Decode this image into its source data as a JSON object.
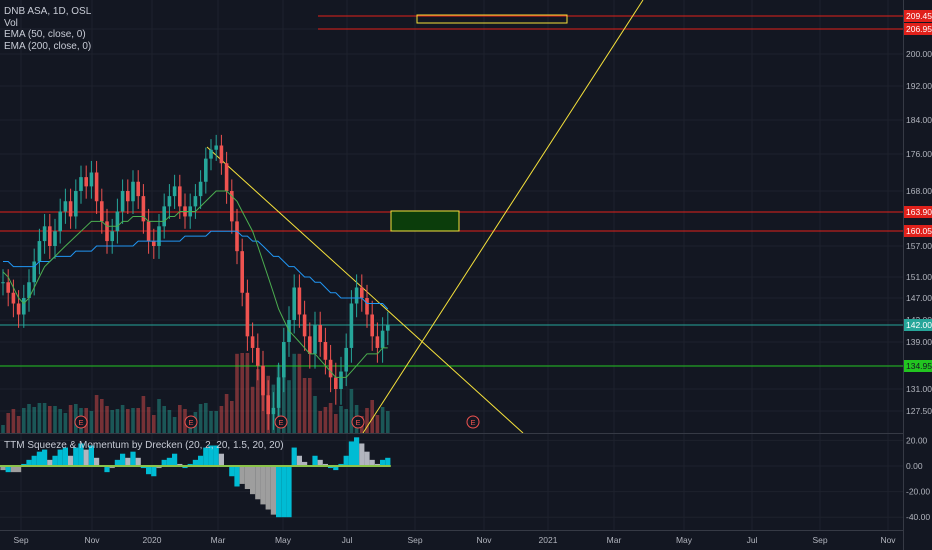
{
  "legend": {
    "symbol": "DNB ASA, 1D, OSL",
    "volume": "Vol",
    "ema50": "EMA (50, close, 0)",
    "ema200": "EMA (200, close, 0)"
  },
  "oscillator": {
    "title": "TTM Squeeze & Momentum by Drecken (20, 2, 20, 1.5, 20, 20)",
    "ticks": [
      "20.00",
      "0.00",
      "-20.00",
      "-40.00"
    ]
  },
  "colors": {
    "background": "#131722",
    "up": "#26a69a",
    "down": "#ef5350",
    "ema50": "#4caf50",
    "ema200": "#2196f3",
    "trendline": "#f5e13b",
    "resistance": "#e0211b",
    "support": "#22c520",
    "current": "#26a69a"
  },
  "chart_data": {
    "type": "candlestick",
    "price_ticks": [
      "206.95",
      "200.00",
      "192.00",
      "184.00",
      "176.00",
      "168.00",
      "163.90",
      "160.05",
      "157.00",
      "151.00",
      "147.00",
      "143.00",
      "139.00",
      "135.00",
      "131.00",
      "127.50"
    ],
    "time_ticks": [
      "Sep",
      "Nov",
      "2020",
      "Mar",
      "May",
      "Jul",
      "Sep",
      "Nov",
      "2021",
      "Mar",
      "May",
      "Jul",
      "Sep",
      "Nov"
    ],
    "levels": [
      {
        "label": "209.45",
        "value": 209.45,
        "kind": "resistance"
      },
      {
        "label": "206.95",
        "value": 206.95,
        "kind": "resistance"
      },
      {
        "label": "163.90",
        "value": 163.9,
        "kind": "resistance"
      },
      {
        "label": "160.05",
        "value": 160.05,
        "kind": "resistance"
      },
      {
        "label": "142.00",
        "value": 142.0,
        "kind": "current"
      },
      {
        "label": "134.95",
        "value": 134.95,
        "kind": "support"
      }
    ],
    "earnings_markers": [
      "E",
      "E",
      "E",
      "E",
      "E",
      "E"
    ],
    "close_series": [
      150,
      148,
      146,
      144,
      147,
      150,
      154,
      158,
      161,
      157,
      160,
      164,
      166,
      163,
      168,
      171,
      169,
      172,
      166,
      162,
      158,
      160,
      164,
      168,
      166,
      170,
      167,
      162,
      158,
      157,
      161,
      165,
      167,
      169,
      165,
      163,
      165,
      167,
      170,
      175,
      177,
      178,
      174,
      168,
      162,
      156,
      148,
      140,
      138,
      135,
      130,
      127,
      128,
      133,
      139,
      143,
      149,
      144,
      140,
      137,
      142,
      139,
      136,
      133,
      131,
      134,
      138,
      146,
      149,
      147,
      144,
      140,
      138,
      141,
      142
    ],
    "ema50_series": [
      152,
      151,
      149,
      147,
      146,
      147,
      149,
      151,
      153,
      154,
      155,
      156,
      157,
      158,
      159,
      160,
      161,
      162,
      162,
      162,
      161,
      161,
      161,
      162,
      162,
      163,
      163,
      163,
      162,
      162,
      162,
      162,
      163,
      163,
      164,
      164,
      164,
      164,
      165,
      166,
      167,
      168,
      168,
      168,
      167,
      166,
      164,
      162,
      160,
      157,
      154,
      151,
      148,
      145,
      143,
      141,
      140,
      139,
      138,
      137,
      137,
      136,
      135,
      134,
      133,
      133,
      133,
      134,
      135,
      136,
      137,
      137,
      137,
      138,
      138
    ],
    "ema200_series": [
      154,
      154,
      153,
      153,
      153,
      153,
      153,
      154,
      154,
      154,
      155,
      155,
      155,
      155,
      156,
      156,
      156,
      156,
      157,
      157,
      157,
      157,
      157,
      157,
      157,
      157,
      158,
      158,
      158,
      158,
      158,
      158,
      158,
      158,
      158,
      159,
      159,
      159,
      159,
      159,
      160,
      160,
      160,
      160,
      160,
      160,
      159,
      159,
      158,
      158,
      157,
      156,
      155,
      155,
      154,
      153,
      153,
      152,
      151,
      151,
      150,
      150,
      149,
      148,
      148,
      147,
      147,
      147,
      147,
      147,
      146,
      146,
      146,
      146,
      145
    ]
  }
}
